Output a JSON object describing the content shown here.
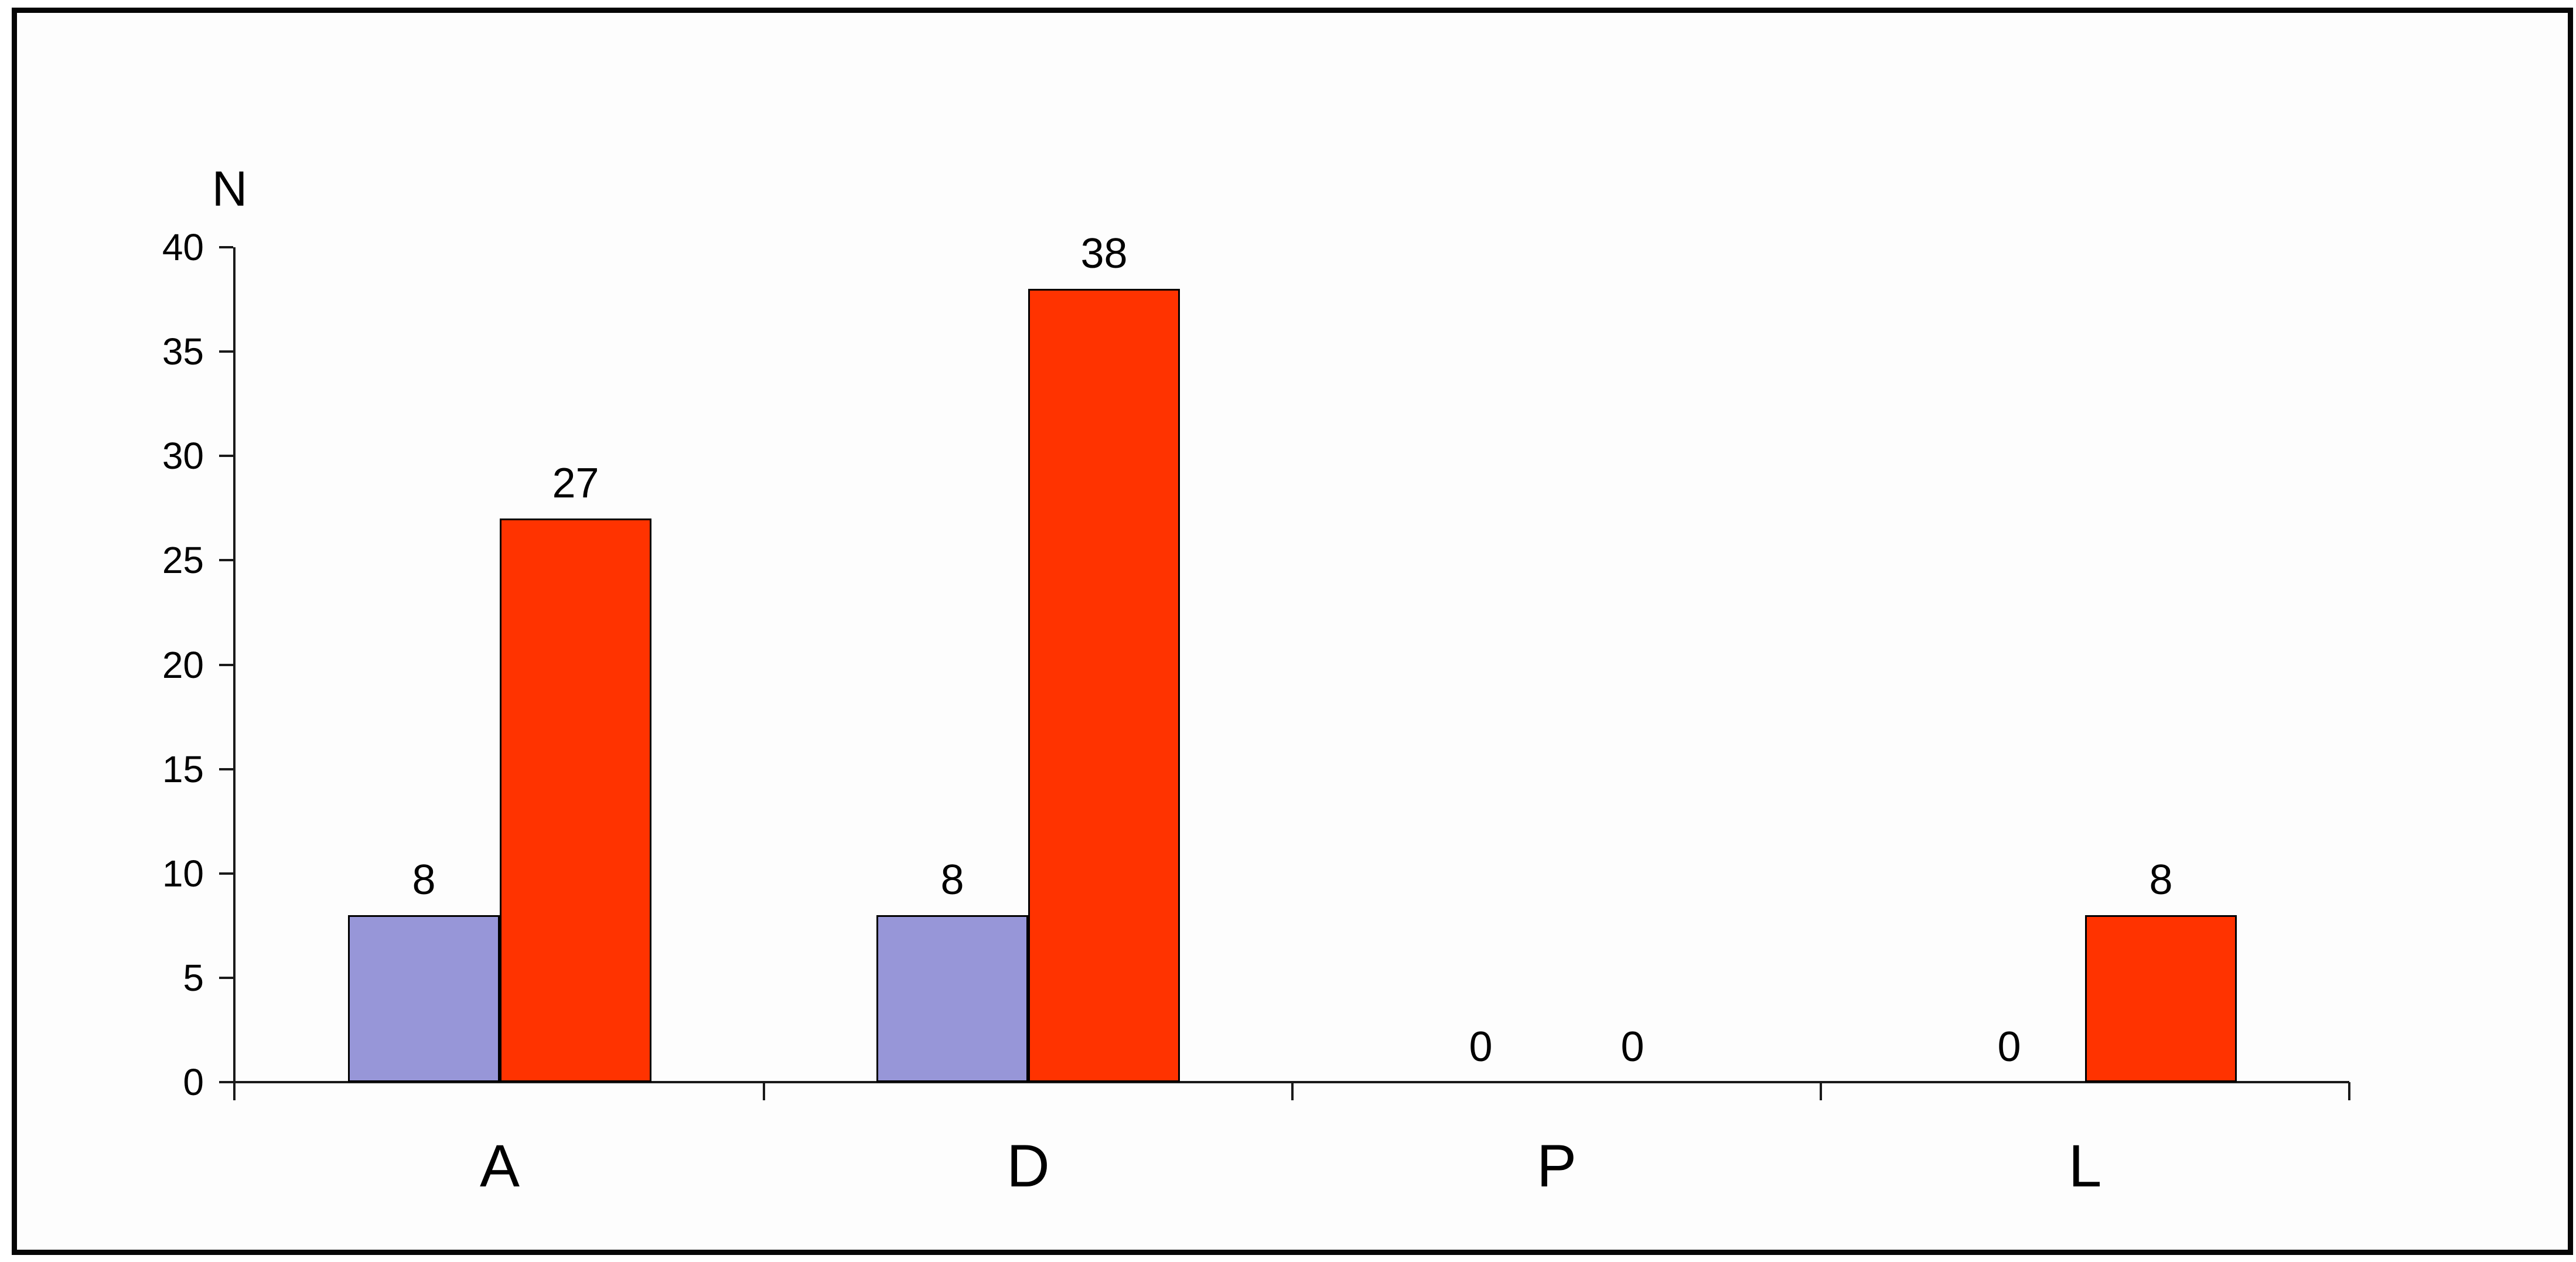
{
  "chart_data": {
    "type": "bar",
    "title": "",
    "ylabel": "N",
    "xlabel": "",
    "categories": [
      "A",
      "D",
      "P",
      "L"
    ],
    "series": [
      {
        "id": "series-1",
        "color": "#9796D8",
        "values": [
          8,
          8,
          0,
          0
        ]
      },
      {
        "id": "series-2",
        "color": "#FF3300",
        "values": [
          27,
          38,
          0,
          8
        ]
      }
    ],
    "data_labels": [
      "8",
      "27",
      "8",
      "38",
      "0",
      "0",
      "0",
      "8"
    ],
    "ylim": [
      0,
      40
    ],
    "ytick_step": 5,
    "yticks": [
      0,
      5,
      10,
      15,
      20,
      25,
      30,
      35,
      40
    ],
    "grid": false,
    "legend_position": "none",
    "bar_outline_color": "#000000",
    "axis_color": "#1A1A1A",
    "frame_border_color": "#060606",
    "background_color": "#FDFDFD"
  }
}
